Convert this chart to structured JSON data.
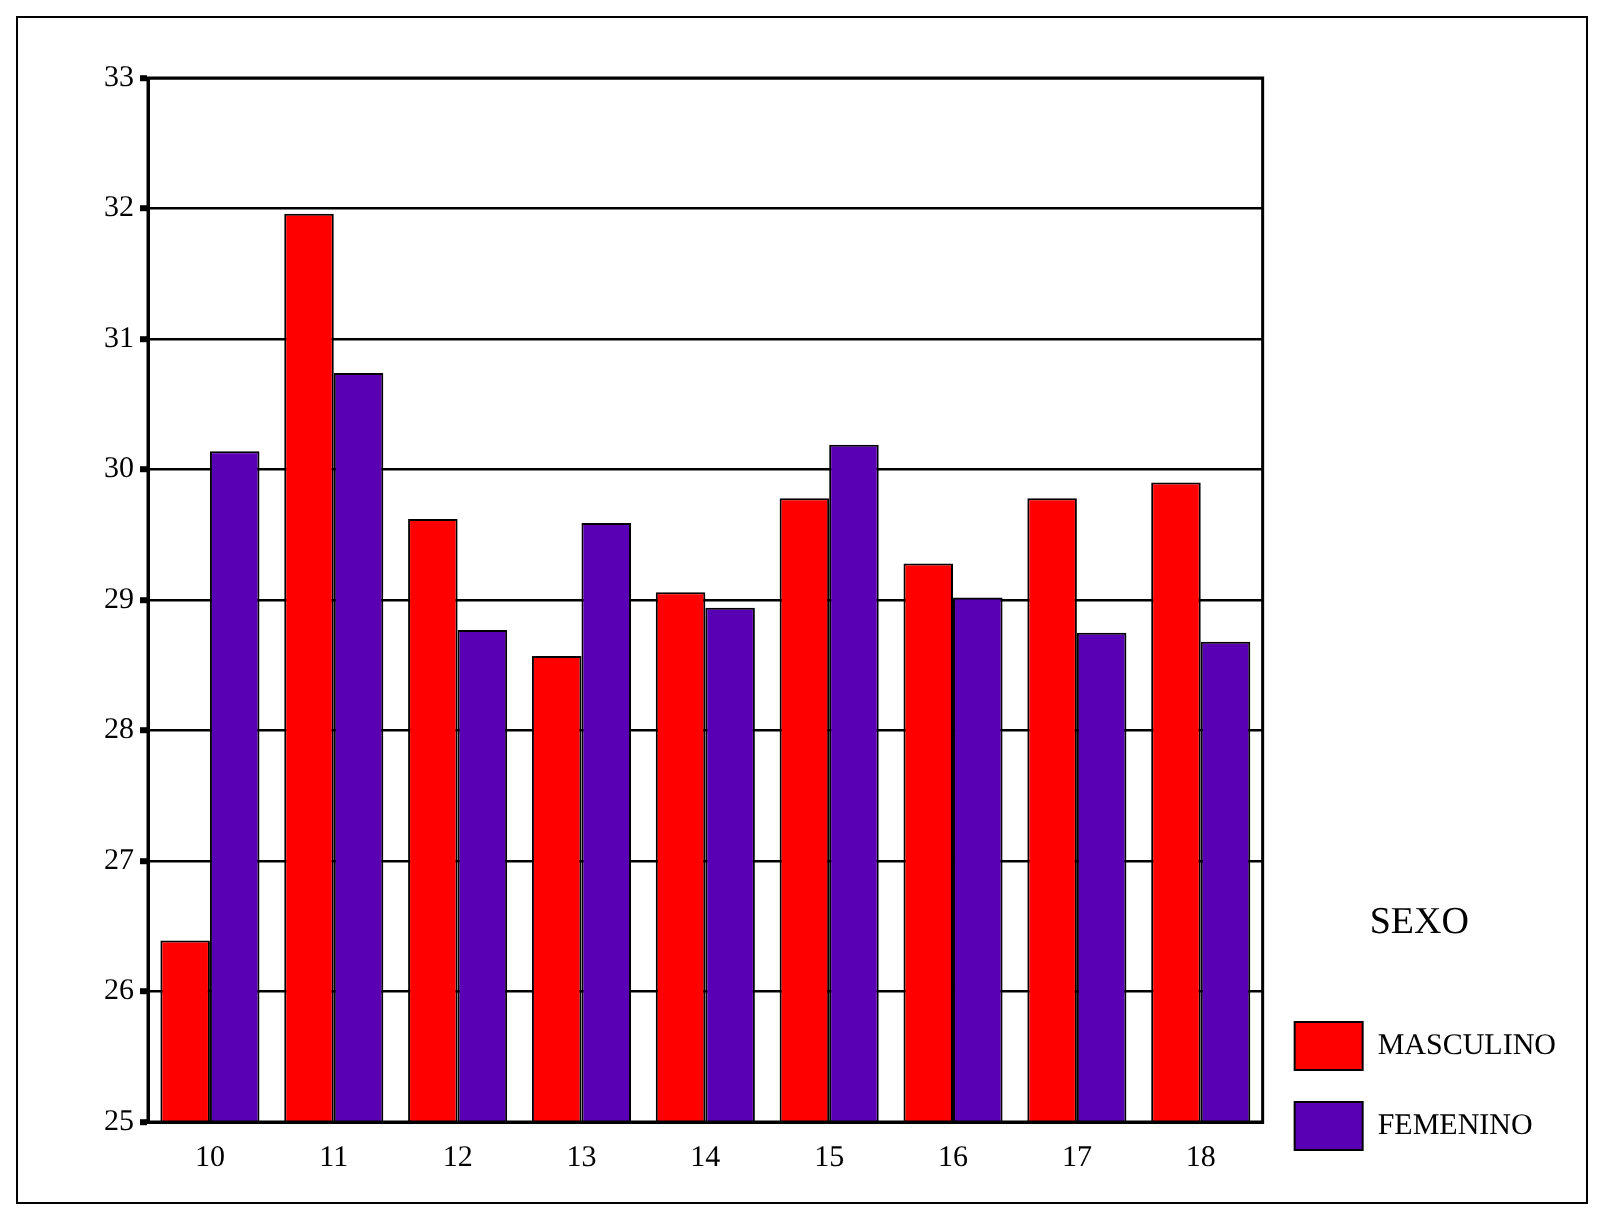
{
  "chart_data": {
    "type": "bar",
    "categories": [
      "10",
      "11",
      "12",
      "13",
      "14",
      "15",
      "16",
      "17",
      "18"
    ],
    "series": [
      {
        "name": "MASCULINO",
        "color": "#ff0000",
        "values": [
          26.39,
          31.96,
          29.62,
          28.57,
          29.06,
          29.78,
          29.28,
          29.78,
          29.9
        ]
      },
      {
        "name": "FEMENINO",
        "color": "#5a00b4",
        "values": [
          30.14,
          30.74,
          28.77,
          29.59,
          28.94,
          30.19,
          29.02,
          28.75,
          28.68
        ]
      }
    ],
    "ylim": [
      25,
      33
    ],
    "yticks": [
      25,
      26,
      27,
      28,
      29,
      30,
      31,
      32,
      33
    ],
    "grid": "y",
    "legend": "bottom right",
    "legend_title": "SEXO"
  }
}
